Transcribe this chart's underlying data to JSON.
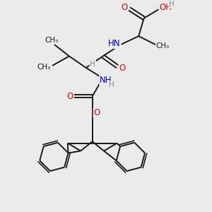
{
  "bg_color": "#ebebeb",
  "bond_color": "#1a1a1a",
  "o_color": "#e00000",
  "n_color": "#0000cc",
  "h_color": "#7a9090",
  "lw": 1.4,
  "fs": 8.5,
  "xlim": [
    0,
    10
  ],
  "ylim": [
    0,
    10
  ]
}
